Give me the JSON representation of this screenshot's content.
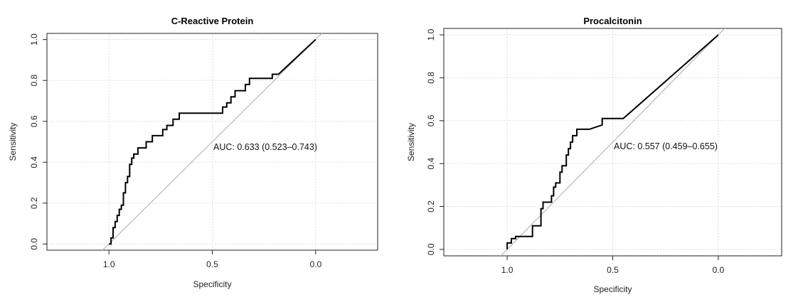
{
  "chart_data": [
    {
      "type": "line",
      "title": "C-Reactive Protein",
      "xlabel": "Specificity",
      "ylabel": "Sensitivity",
      "xlim": [
        1.3,
        -0.3
      ],
      "ylim": [
        -0.03,
        1.03
      ],
      "x_reversed": true,
      "x_ticks": [
        1.0,
        0.5,
        0.0
      ],
      "x_tick_labels": [
        "1.0",
        "0.5",
        "0.0"
      ],
      "y_ticks": [
        0.0,
        0.2,
        0.4,
        0.6,
        0.8,
        1.0
      ],
      "y_tick_labels": [
        "0.0",
        "0.2",
        "0.4",
        "0.6",
        "0.8",
        "1.0"
      ],
      "grid": true,
      "reference_line": [
        [
          1.0,
          0.0
        ],
        [
          0.0,
          1.0
        ]
      ],
      "annotation": "AUC: 0.633 (0.523–0.743)",
      "series": [
        {
          "x": [
            1.0,
            0.99,
            0.99,
            0.98,
            0.98,
            0.97,
            0.97,
            0.96,
            0.96,
            0.95,
            0.95,
            0.94,
            0.94,
            0.93,
            0.93,
            0.92,
            0.92,
            0.91,
            0.91,
            0.9,
            0.9,
            0.89,
            0.89,
            0.88,
            0.88,
            0.86,
            0.86,
            0.82,
            0.82,
            0.79,
            0.79,
            0.74,
            0.74,
            0.72,
            0.72,
            0.69,
            0.69,
            0.66,
            0.66,
            0.62,
            0.62,
            0.59,
            0.59,
            0.57,
            0.57,
            0.45,
            0.45,
            0.43,
            0.43,
            0.41,
            0.41,
            0.39,
            0.39,
            0.34,
            0.34,
            0.32,
            0.32,
            0.21,
            0.21,
            0.18,
            0.0
          ],
          "y": [
            0.0,
            0.0,
            0.03,
            0.03,
            0.08,
            0.08,
            0.11,
            0.11,
            0.14,
            0.14,
            0.17,
            0.17,
            0.19,
            0.19,
            0.25,
            0.25,
            0.3,
            0.3,
            0.33,
            0.33,
            0.39,
            0.39,
            0.42,
            0.42,
            0.44,
            0.44,
            0.47,
            0.47,
            0.5,
            0.5,
            0.53,
            0.53,
            0.56,
            0.56,
            0.58,
            0.58,
            0.61,
            0.61,
            0.64,
            0.64,
            0.64,
            0.64,
            0.64,
            0.64,
            0.64,
            0.64,
            0.67,
            0.67,
            0.69,
            0.69,
            0.72,
            0.72,
            0.75,
            0.75,
            0.78,
            0.78,
            0.81,
            0.81,
            0.83,
            0.83,
            1.0
          ]
        }
      ]
    },
    {
      "type": "line",
      "title": "Procalcitonin",
      "xlabel": "Specificity",
      "ylabel": "Sensitivity",
      "xlim": [
        1.3,
        -0.3
      ],
      "ylim": [
        -0.03,
        1.03
      ],
      "x_reversed": true,
      "x_ticks": [
        1.0,
        0.5,
        0.0
      ],
      "x_tick_labels": [
        "1.0",
        "0.5",
        "0.0"
      ],
      "y_ticks": [
        0.0,
        0.2,
        0.4,
        0.6,
        0.8,
        1.0
      ],
      "y_tick_labels": [
        "0.0",
        "0.2",
        "0.4",
        "0.6",
        "0.8",
        "1.0"
      ],
      "grid": true,
      "reference_line": [
        [
          1.0,
          0.0
        ],
        [
          0.0,
          1.0
        ]
      ],
      "annotation": "AUC: 0.557 (0.459–0.655)",
      "series": [
        {
          "x": [
            1.0,
            1.0,
            0.98,
            0.98,
            0.96,
            0.96,
            0.88,
            0.88,
            0.84,
            0.84,
            0.83,
            0.83,
            0.82,
            0.82,
            0.79,
            0.79,
            0.78,
            0.78,
            0.77,
            0.77,
            0.75,
            0.75,
            0.74,
            0.74,
            0.72,
            0.72,
            0.71,
            0.71,
            0.7,
            0.7,
            0.69,
            0.69,
            0.67,
            0.67,
            0.66,
            0.66,
            0.61,
            0.55,
            0.55,
            0.45,
            0.0
          ],
          "y": [
            0.0,
            0.03,
            0.03,
            0.05,
            0.05,
            0.06,
            0.06,
            0.11,
            0.11,
            0.19,
            0.19,
            0.22,
            0.22,
            0.22,
            0.22,
            0.25,
            0.25,
            0.29,
            0.29,
            0.31,
            0.31,
            0.36,
            0.36,
            0.39,
            0.39,
            0.44,
            0.44,
            0.47,
            0.47,
            0.5,
            0.5,
            0.53,
            0.53,
            0.56,
            0.56,
            0.56,
            0.56,
            0.58,
            0.61,
            0.61,
            1.0
          ]
        }
      ]
    }
  ]
}
